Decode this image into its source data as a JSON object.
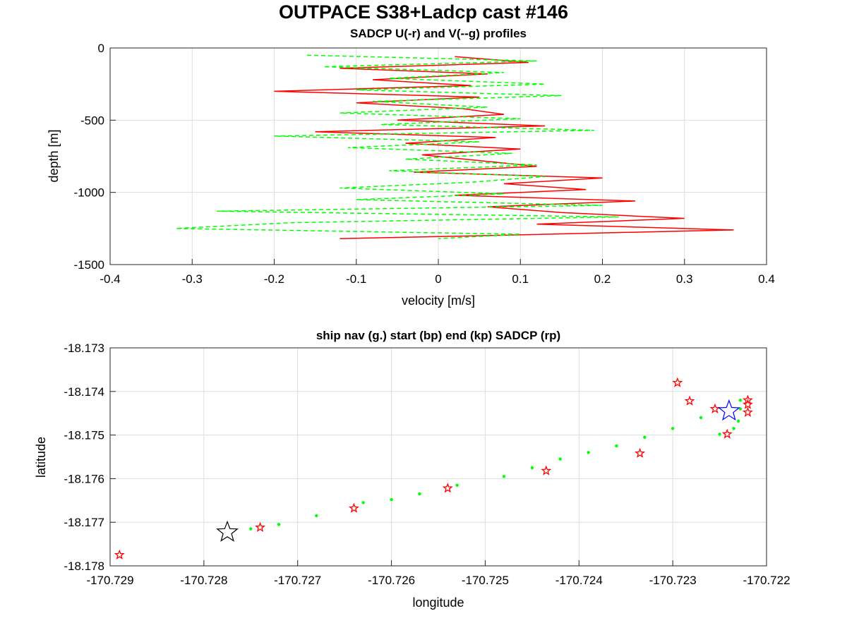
{
  "figure": {
    "title": "OUTPACE S38+Ladcp cast #146"
  },
  "colors": {
    "u_profile": "#ff0000",
    "v_profile": "#00ff00",
    "nav": "#00ff00",
    "start_marker": "#0000ff",
    "end_marker": "#000000",
    "sadcp_marker": "#ff0000",
    "grid": "#dddddd"
  },
  "chart_data": [
    {
      "type": "line",
      "title": "SADCP U(-r) and V(--g) profiles",
      "xlabel": "velocity [m/s]",
      "ylabel": "depth [m]",
      "xlim": [
        -0.4,
        0.4
      ],
      "ylim": [
        -1500,
        0
      ],
      "xticks": [
        "-0.4",
        "-0.3",
        "-0.2",
        "-0.1",
        "0",
        "0.1",
        "0.2",
        "0.3",
        "0.4"
      ],
      "yticks": [
        "0",
        "-500",
        "-1000",
        "-1500"
      ],
      "grid": true,
      "series": [
        {
          "name": "U",
          "style": "solid red",
          "depth": [
            -60,
            -100,
            -140,
            -180,
            -220,
            -260,
            -300,
            -340,
            -380,
            -420,
            -460,
            -500,
            -540,
            -580,
            -620,
            -660,
            -700,
            -740,
            -780,
            -820,
            -860,
            -900,
            -940,
            -980,
            -1020,
            -1060,
            -1100,
            -1140,
            -1180,
            -1220,
            -1260,
            -1300,
            -1320
          ],
          "values": [
            0.02,
            0.11,
            -0.12,
            0.06,
            -0.08,
            0.04,
            -0.2,
            0.05,
            -0.1,
            0.03,
            0.08,
            -0.05,
            0.13,
            -0.15,
            0.07,
            -0.04,
            0.1,
            -0.02,
            0.05,
            0.12,
            -0.03,
            0.2,
            0.08,
            0.18,
            0.02,
            0.24,
            0.06,
            0.15,
            0.3,
            0.12,
            0.36,
            0.05,
            -0.12
          ]
        },
        {
          "name": "V",
          "style": "dashed green",
          "depth": [
            -50,
            -90,
            -130,
            -170,
            -210,
            -250,
            -290,
            -330,
            -370,
            -410,
            -450,
            -490,
            -530,
            -570,
            -610,
            -650,
            -690,
            -730,
            -770,
            -810,
            -850,
            -890,
            -930,
            -970,
            -1010,
            -1050,
            -1090,
            -1130,
            -1170,
            -1210,
            -1250,
            -1290,
            -1320
          ],
          "values": [
            -0.16,
            0.12,
            -0.14,
            0.08,
            -0.06,
            0.13,
            -0.1,
            0.15,
            -0.08,
            0.06,
            -0.12,
            0.1,
            -0.07,
            0.19,
            -0.2,
            0.05,
            -0.11,
            0.09,
            -0.04,
            0.12,
            -0.06,
            0.13,
            0.04,
            -0.12,
            0.08,
            -0.1,
            0.2,
            -0.27,
            0.22,
            -0.18,
            -0.32,
            0.1,
            0.0
          ]
        }
      ]
    },
    {
      "type": "scatter",
      "title": "ship nav (g.) start (bp) end (kp) SADCP (rp)",
      "xlabel": "longitude",
      "ylabel": "latitude",
      "xlim": [
        -170.729,
        -170.722
      ],
      "ylim": [
        -18.178,
        -18.173
      ],
      "xticks": [
        "-170.729",
        "-170.728",
        "-170.727",
        "-170.726",
        "-170.725",
        "-170.724",
        "-170.723",
        "-170.722"
      ],
      "yticks": [
        "-18.173",
        "-18.174",
        "-18.175",
        "-18.176",
        "-18.177",
        "-18.178"
      ],
      "grid": true,
      "series": [
        {
          "name": "ship nav",
          "marker": "dot",
          "x": [
            -170.7275,
            -170.7272,
            -170.7268,
            -170.7263,
            -170.726,
            -170.7257,
            -170.7253,
            -170.7248,
            -170.7245,
            -170.7242,
            -170.7239,
            -170.7236,
            -170.7233,
            -170.723,
            -170.7227,
            -170.7225,
            -170.72235,
            -170.7223,
            -170.72228,
            -170.72228
          ],
          "y": [
            -18.17715,
            -18.17705,
            -18.17685,
            -18.17655,
            -18.17648,
            -18.17635,
            -18.17615,
            -18.17595,
            -18.17575,
            -18.17555,
            -18.1754,
            -18.17525,
            -18.17505,
            -18.17485,
            -18.1746,
            -18.17498,
            -18.17485,
            -18.17468,
            -18.1744,
            -18.1742
          ]
        },
        {
          "name": "start",
          "marker": "blue star",
          "x": [
            -170.7224
          ],
          "y": [
            -18.17445
          ]
        },
        {
          "name": "end",
          "marker": "black star",
          "x": [
            -170.72775
          ],
          "y": [
            -18.17723
          ]
        },
        {
          "name": "SADCP",
          "marker": "red star",
          "x": [
            -170.7289,
            -170.7274,
            -170.7264,
            -170.7254,
            -170.72435,
            -170.72335,
            -170.72295,
            -170.72282,
            -170.72255,
            -170.72242,
            -170.7222,
            -170.7222,
            -170.7222
          ],
          "y": [
            -18.17775,
            -18.17712,
            -18.17668,
            -18.17622,
            -18.17582,
            -18.17542,
            -18.1738,
            -18.17422,
            -18.1744,
            -18.17498,
            -18.1742,
            -18.1743,
            -18.17448
          ]
        }
      ]
    }
  ]
}
